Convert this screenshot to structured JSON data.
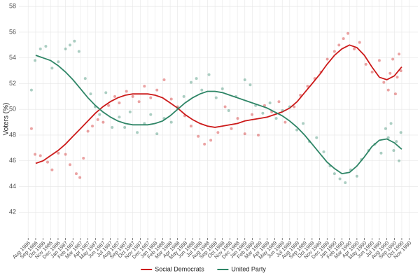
{
  "chart_data": {
    "type": "scatter",
    "y_label": "Voters (%)",
    "ylim": [
      40,
      58.5
    ],
    "yticks": [
      42,
      44,
      46,
      48,
      50,
      52,
      54,
      56,
      58
    ],
    "xlim": [
      1986.48,
      1990.93
    ],
    "xticks": [
      {
        "value": 1986.583,
        "label": "Aug 1986"
      },
      {
        "value": 1986.667,
        "label": "Sep 1986"
      },
      {
        "value": 1986.75,
        "label": "Oct 1986"
      },
      {
        "value": 1986.833,
        "label": "Nov 1986"
      },
      {
        "value": 1986.917,
        "label": "Dec 1986"
      },
      {
        "value": 1987.0,
        "label": "Jan 1987"
      },
      {
        "value": 1987.083,
        "label": "Feb 1987"
      },
      {
        "value": 1987.167,
        "label": "Mar 1987"
      },
      {
        "value": 1987.25,
        "label": "Apr 1987"
      },
      {
        "value": 1987.333,
        "label": "May 1987"
      },
      {
        "value": 1987.417,
        "label": "Jun 1987"
      },
      {
        "value": 1987.5,
        "label": "Jul 1987"
      },
      {
        "value": 1987.583,
        "label": "Aug 1987"
      },
      {
        "value": 1987.667,
        "label": "Sep 1987"
      },
      {
        "value": 1987.75,
        "label": "Oct 1987"
      },
      {
        "value": 1987.833,
        "label": "Nov 1987"
      },
      {
        "value": 1987.917,
        "label": "Dec 1987"
      },
      {
        "value": 1988.0,
        "label": "Jan 1988"
      },
      {
        "value": 1988.083,
        "label": "Feb 1988"
      },
      {
        "value": 1988.167,
        "label": "Mar 1988"
      },
      {
        "value": 1988.25,
        "label": "Apr 1988"
      },
      {
        "value": 1988.333,
        "label": "May 1988"
      },
      {
        "value": 1988.417,
        "label": "Jun 1988"
      },
      {
        "value": 1988.5,
        "label": "Jul 1988"
      },
      {
        "value": 1988.583,
        "label": "Aug 1988"
      },
      {
        "value": 1988.667,
        "label": "Sep 1988"
      },
      {
        "value": 1988.75,
        "label": "Oct 1988"
      },
      {
        "value": 1988.833,
        "label": "Nov 1988"
      },
      {
        "value": 1988.917,
        "label": "Dec 1988"
      },
      {
        "value": 1989.0,
        "label": "Jan 1989"
      },
      {
        "value": 1989.083,
        "label": "Feb 1989"
      },
      {
        "value": 1989.167,
        "label": "Mar 1989"
      },
      {
        "value": 1989.25,
        "label": "Apr 1989"
      },
      {
        "value": 1989.333,
        "label": "May 1989"
      },
      {
        "value": 1989.417,
        "label": "Jun 1989"
      },
      {
        "value": 1989.5,
        "label": "Jul 1989"
      },
      {
        "value": 1989.583,
        "label": "Aug 1989"
      },
      {
        "value": 1989.667,
        "label": "Sep 1989"
      },
      {
        "value": 1989.75,
        "label": "Oct 1989"
      },
      {
        "value": 1989.833,
        "label": "Nov 1989"
      },
      {
        "value": 1989.917,
        "label": "Dec 1989"
      },
      {
        "value": 1990.0,
        "label": "Jan 1990"
      },
      {
        "value": 1990.083,
        "label": "Feb 1990"
      },
      {
        "value": 1990.167,
        "label": "Mar 1990"
      },
      {
        "value": 1990.25,
        "label": "Apr 1990"
      },
      {
        "value": 1990.333,
        "label": "May 1990"
      },
      {
        "value": 1990.417,
        "label": "Jun 1990"
      },
      {
        "value": 1990.5,
        "label": "Jul 1990"
      },
      {
        "value": 1990.583,
        "label": "Aug 1990"
      },
      {
        "value": 1990.667,
        "label": "Sep 1990"
      },
      {
        "value": 1990.75,
        "label": "Oct 1990"
      },
      {
        "value": 1990.833,
        "label": "Nov 1990"
      }
    ],
    "grid": true,
    "legend": "bottom",
    "series": [
      {
        "name": "Social Democrats",
        "color": "#cc1a1a",
        "x": [
          1986.62,
          1986.66,
          1986.72,
          1986.8,
          1986.85,
          1986.92,
          1987.0,
          1987.05,
          1987.12,
          1987.16,
          1987.2,
          1987.25,
          1987.3,
          1987.36,
          1987.42,
          1987.48,
          1987.55,
          1987.6,
          1987.68,
          1987.75,
          1987.82,
          1987.88,
          1987.95,
          1988.02,
          1988.1,
          1988.18,
          1988.25,
          1988.33,
          1988.4,
          1988.48,
          1988.55,
          1988.62,
          1988.7,
          1988.78,
          1988.85,
          1988.92,
          1989.0,
          1989.08,
          1989.15,
          1989.22,
          1989.3,
          1989.38,
          1989.45,
          1989.55,
          1989.62,
          1989.7,
          1989.78,
          1989.85,
          1989.92,
          1990.0,
          1990.05,
          1990.1,
          1990.15,
          1990.22,
          1990.28,
          1990.35,
          1990.42,
          1990.5,
          1990.55,
          1990.6,
          1990.62,
          1990.65,
          1990.68,
          1990.7,
          1990.72,
          1990.74
        ],
        "values": [
          48.5,
          46.5,
          46.4,
          45.9,
          45.3,
          46.6,
          46.5,
          45.7,
          45.0,
          44.7,
          46.2,
          48.3,
          48.7,
          49.2,
          49.0,
          50.3,
          51.0,
          50.5,
          51.4,
          51.0,
          50.6,
          51.8,
          50.9,
          51.5,
          52.3,
          50.8,
          50.2,
          49.5,
          48.7,
          47.9,
          47.3,
          47.6,
          48.2,
          50.2,
          48.5,
          49.3,
          48.1,
          49.6,
          48.0,
          50.3,
          49.8,
          50.6,
          49.0,
          50.2,
          51.1,
          51.8,
          52.4,
          52.9,
          53.9,
          54.5,
          55.0,
          55.5,
          55.9,
          54.7,
          55.2,
          53.5,
          52.9,
          53.8,
          52.1,
          51.5,
          52.8,
          53.9,
          51.2,
          52.5,
          54.3,
          53.0
        ],
        "trend": {
          "x": [
            1986.667,
            1986.75,
            1986.833,
            1986.917,
            1987.0,
            1987.083,
            1987.167,
            1987.25,
            1987.333,
            1987.417,
            1987.5,
            1987.583,
            1987.667,
            1987.75,
            1987.833,
            1987.917,
            1988.0,
            1988.083,
            1988.167,
            1988.25,
            1988.333,
            1988.417,
            1988.5,
            1988.583,
            1988.667,
            1988.75,
            1988.833,
            1988.917,
            1989.0,
            1989.083,
            1989.167,
            1989.25,
            1989.333,
            1989.417,
            1989.5,
            1989.583,
            1989.667,
            1989.75,
            1989.833,
            1989.917,
            1990.0,
            1990.083,
            1990.167,
            1990.25,
            1990.333,
            1990.417,
            1990.5,
            1990.583,
            1990.667,
            1990.75
          ],
          "values": [
            45.8,
            46.0,
            46.4,
            46.8,
            47.3,
            47.9,
            48.5,
            49.1,
            49.7,
            50.2,
            50.6,
            50.9,
            51.1,
            51.2,
            51.2,
            51.2,
            51.1,
            50.9,
            50.5,
            50.1,
            49.6,
            49.2,
            48.9,
            48.7,
            48.6,
            48.7,
            48.8,
            48.9,
            49.1,
            49.2,
            49.3,
            49.4,
            49.6,
            49.8,
            50.1,
            50.6,
            51.3,
            52.0,
            52.7,
            53.5,
            54.2,
            54.7,
            55.0,
            54.8,
            54.2,
            53.3,
            52.5,
            52.3,
            52.6,
            53.3
          ]
        }
      },
      {
        "name": "United Party",
        "color": "#2e8566",
        "x": [
          1986.62,
          1986.66,
          1986.72,
          1986.78,
          1986.85,
          1986.92,
          1987.0,
          1987.05,
          1987.1,
          1987.15,
          1987.22,
          1987.28,
          1987.33,
          1987.38,
          1987.45,
          1987.52,
          1987.6,
          1987.66,
          1987.72,
          1987.8,
          1987.88,
          1987.95,
          1988.02,
          1988.1,
          1988.18,
          1988.25,
          1988.32,
          1988.4,
          1988.46,
          1988.52,
          1988.6,
          1988.68,
          1988.75,
          1988.82,
          1988.9,
          1989.0,
          1989.06,
          1989.12,
          1989.2,
          1989.28,
          1989.35,
          1989.42,
          1989.5,
          1989.58,
          1989.65,
          1989.72,
          1989.8,
          1989.88,
          1989.95,
          1990.0,
          1990.06,
          1990.12,
          1990.18,
          1990.25,
          1990.3,
          1990.38,
          1990.45,
          1990.52,
          1990.57,
          1990.6,
          1990.63,
          1990.66,
          1990.69,
          1990.72,
          1990.74
        ],
        "values": [
          51.5,
          53.8,
          54.7,
          54.9,
          53.2,
          53.7,
          54.7,
          55.0,
          55.3,
          54.5,
          52.4,
          51.2,
          50.2,
          49.6,
          51.3,
          48.6,
          49.4,
          48.6,
          49.8,
          48.2,
          48.9,
          49.6,
          48.1,
          49.3,
          49.0,
          50.1,
          51.0,
          52.1,
          52.4,
          51.5,
          52.7,
          50.9,
          51.6,
          49.9,
          51.0,
          52.3,
          51.9,
          50.3,
          49.7,
          50.5,
          49.3,
          49.9,
          50.2,
          48.4,
          48.9,
          47.5,
          47.8,
          46.7,
          45.6,
          45.0,
          44.6,
          44.3,
          45.3,
          44.8,
          46.1,
          46.8,
          47.3,
          46.6,
          48.5,
          47.8,
          48.9,
          46.8,
          47.5,
          46.0,
          48.2
        ],
        "trend": {
          "x": [
            1986.667,
            1986.75,
            1986.833,
            1986.917,
            1987.0,
            1987.083,
            1987.167,
            1987.25,
            1987.333,
            1987.417,
            1987.5,
            1987.583,
            1987.667,
            1987.75,
            1987.833,
            1987.917,
            1988.0,
            1988.083,
            1988.167,
            1988.25,
            1988.333,
            1988.417,
            1988.5,
            1988.583,
            1988.667,
            1988.75,
            1988.833,
            1988.917,
            1989.0,
            1989.083,
            1989.167,
            1989.25,
            1989.333,
            1989.417,
            1989.5,
            1989.583,
            1989.667,
            1989.75,
            1989.833,
            1989.917,
            1990.0,
            1990.083,
            1990.167,
            1990.25,
            1990.333,
            1990.417,
            1990.5,
            1990.583,
            1990.667,
            1990.75
          ],
          "values": [
            54.2,
            54.0,
            53.8,
            53.4,
            52.9,
            52.3,
            51.6,
            50.9,
            50.3,
            49.8,
            49.4,
            49.1,
            48.9,
            48.8,
            48.8,
            48.8,
            48.9,
            49.1,
            49.5,
            50.0,
            50.5,
            50.9,
            51.2,
            51.4,
            51.4,
            51.3,
            51.1,
            50.9,
            50.7,
            50.5,
            50.3,
            50.1,
            49.8,
            49.5,
            49.1,
            48.6,
            48.0,
            47.3,
            46.6,
            45.9,
            45.4,
            45.0,
            45.1,
            45.6,
            46.3,
            47.1,
            47.6,
            47.7,
            47.4,
            46.9
          ]
        }
      }
    ]
  }
}
